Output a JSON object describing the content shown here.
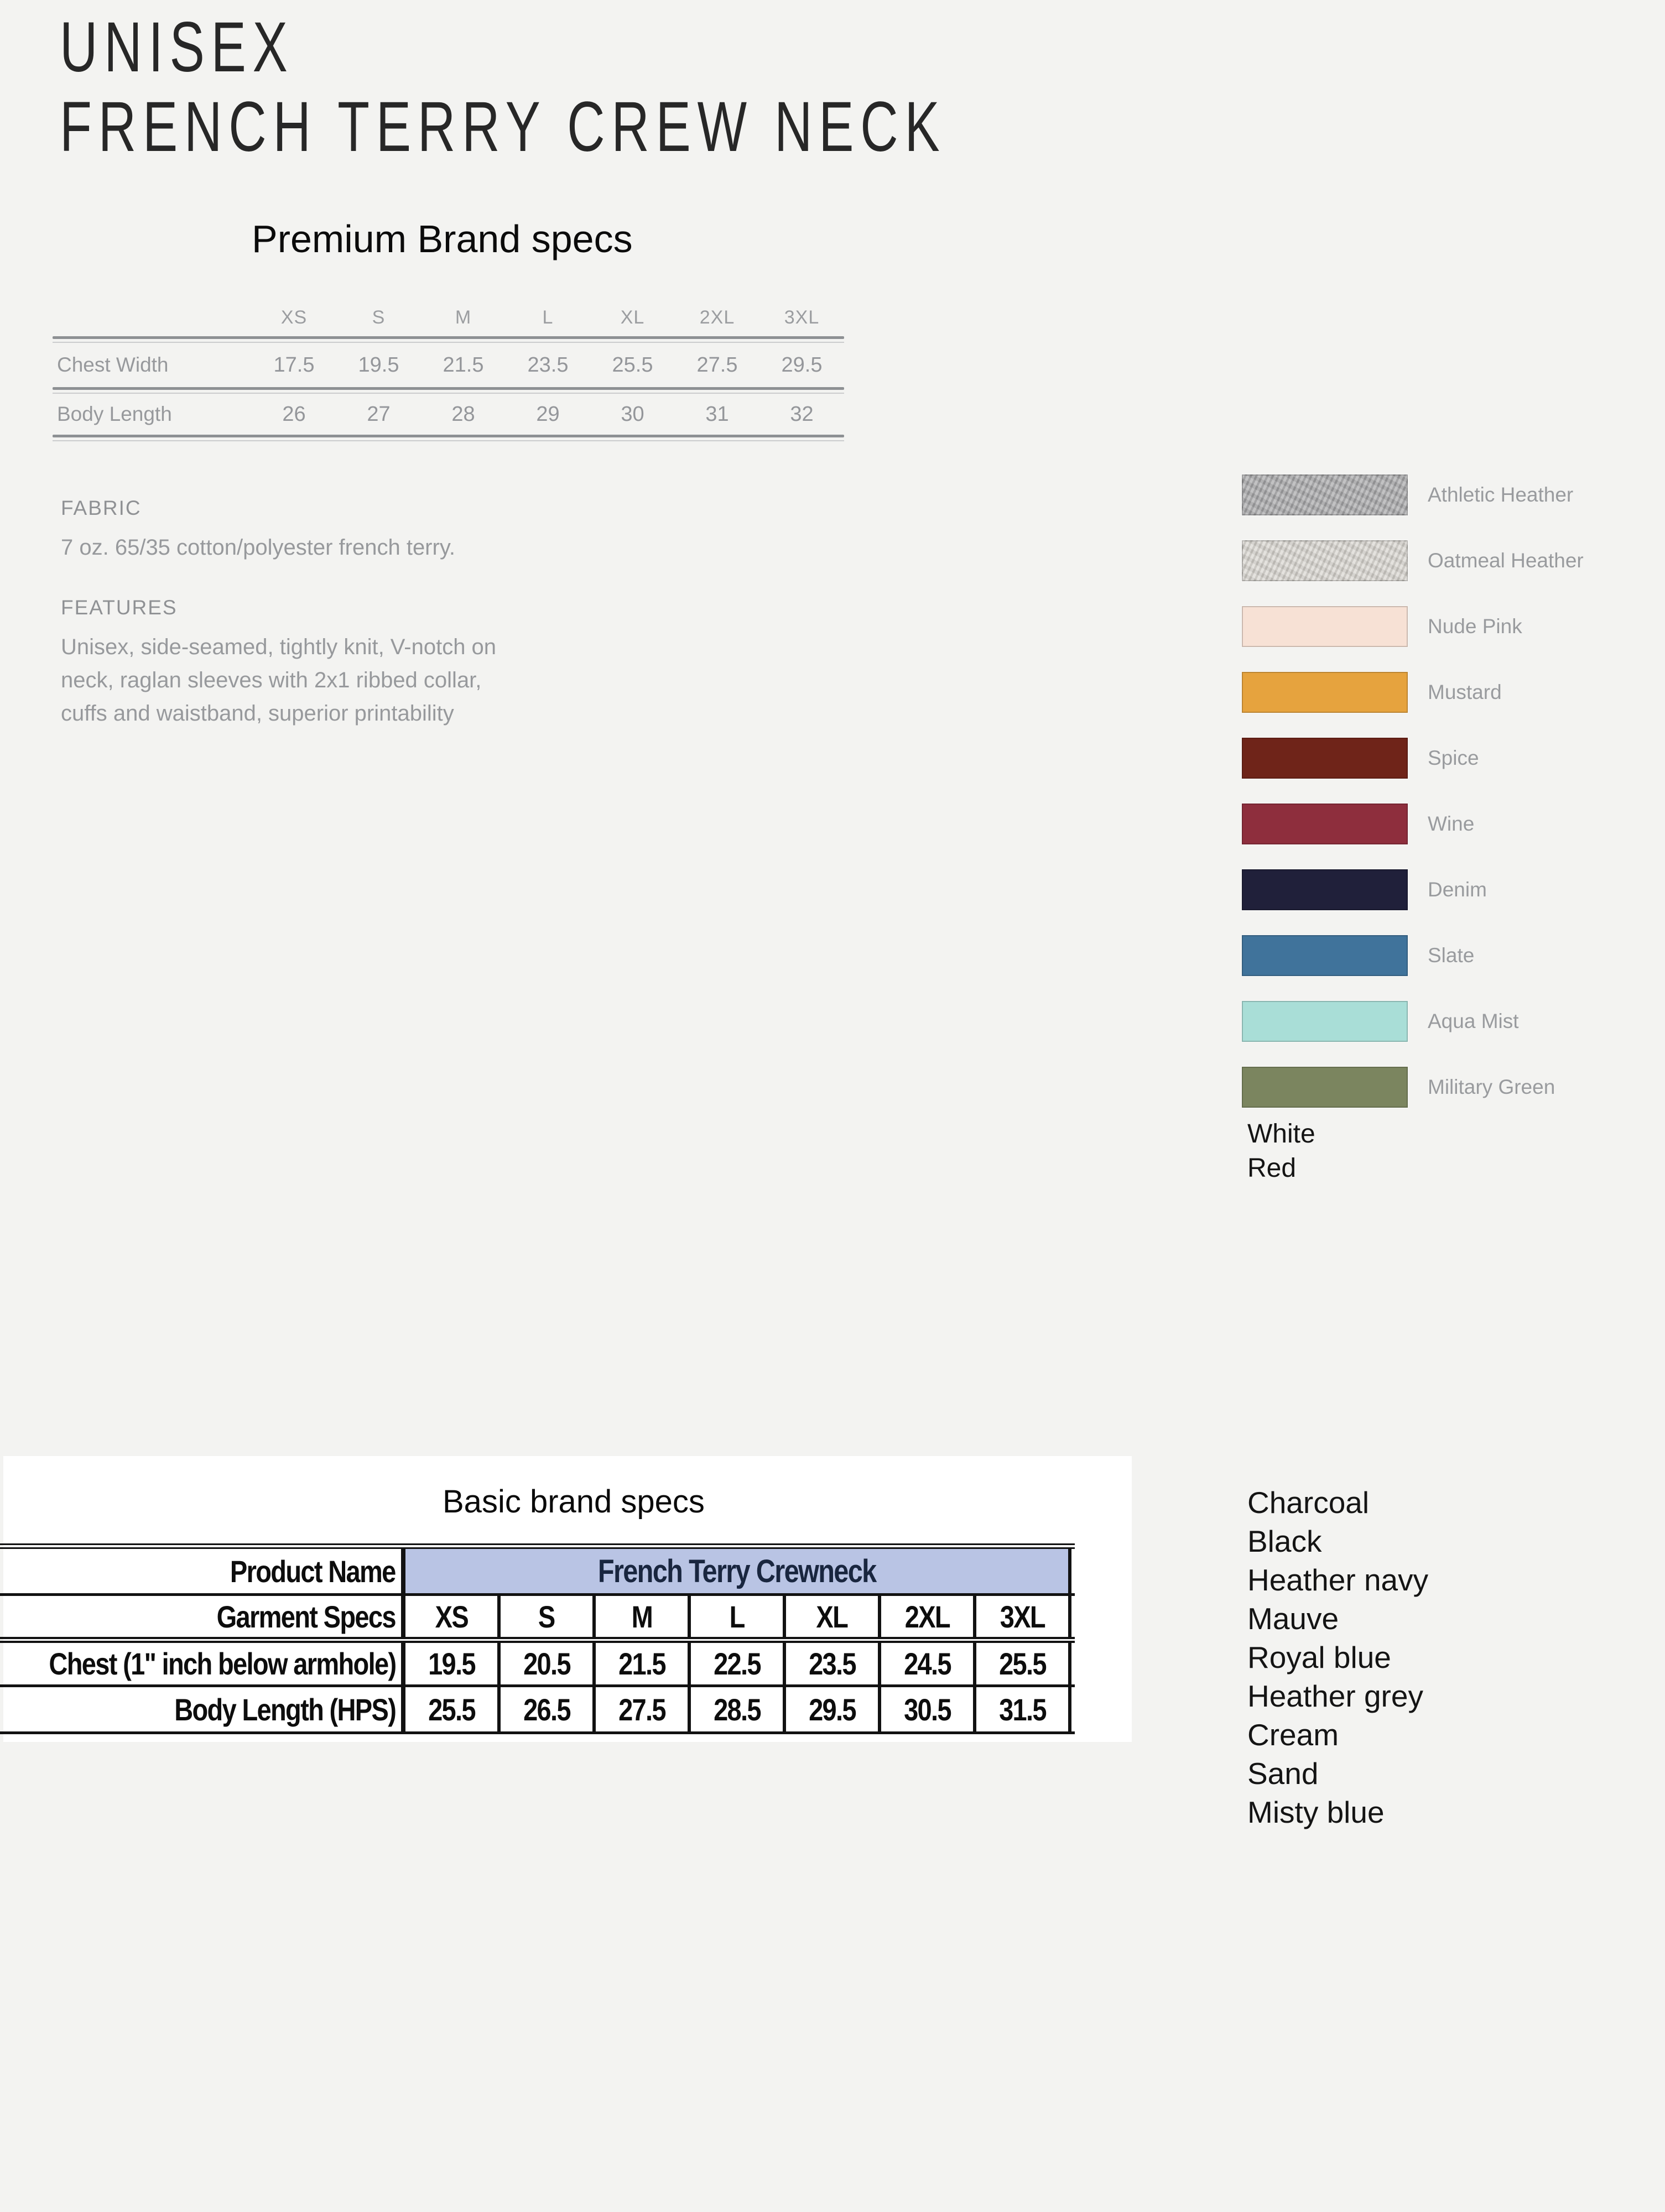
{
  "header": {
    "title_line1": "UNISEX",
    "title_line2": "FRENCH TERRY CREW NECK"
  },
  "premium": {
    "heading": "Premium Brand specs",
    "table": {
      "sizes": [
        "XS",
        "S",
        "M",
        "L",
        "XL",
        "2XL",
        "3XL"
      ],
      "rows": [
        {
          "label": "Chest Width",
          "values": [
            "17.5",
            "19.5",
            "21.5",
            "23.5",
            "25.5",
            "27.5",
            "29.5"
          ]
        },
        {
          "label": "Body Length",
          "values": [
            "26",
            "27",
            "28",
            "29",
            "30",
            "31",
            "32"
          ]
        }
      ]
    },
    "fabric": {
      "heading": "FABRIC",
      "text": "7 oz. 65/35 cotton/polyester french terry."
    },
    "features": {
      "heading": "FEATURES",
      "lines": [
        "Unisex, side-seamed, tightly knit, V-notch on",
        "neck, raglan sleeves with 2x1 ribbed collar,",
        "cuffs and waistband, superior printability"
      ]
    }
  },
  "swatches": [
    {
      "name": "Athletic Heather",
      "color": "#a6a6a8"
    },
    {
      "name": "Oatmeal Heather",
      "color": "#d8d5cf"
    },
    {
      "name": "Nude Pink",
      "color": "#f7e1d5"
    },
    {
      "name": "Mustard",
      "color": "#e6a33e"
    },
    {
      "name": "Spice",
      "color": "#6f2419"
    },
    {
      "name": "Wine",
      "color": "#8e2e3d"
    },
    {
      "name": "Denim",
      "color": "#20203a"
    },
    {
      "name": "Slate",
      "color": "#40739b"
    },
    {
      "name": "Aqua Mist",
      "color": "#a9ded7"
    },
    {
      "name": "Military Green",
      "color": "#7b855f"
    }
  ],
  "extra_colors_top": [
    "White",
    "Red"
  ],
  "extra_colors_bottom": [
    "Charcoal",
    "Black",
    "Heather navy",
    "Mauve",
    "Royal blue",
    "Heather grey",
    "Cream",
    "Sand",
    "Misty blue"
  ],
  "basic": {
    "heading": "Basic brand specs",
    "table": {
      "product_name_label": "Product Name",
      "product_name_value": "French Terry Crewneck",
      "garment_specs_label": "Garment Specs",
      "sizes": [
        "XS",
        "S",
        "M",
        "L",
        "XL",
        "2XL",
        "3XL"
      ],
      "rows": [
        {
          "label": "Chest (1\" inch below armhole)",
          "values": [
            "19.5",
            "20.5",
            "21.5",
            "22.5",
            "23.5",
            "24.5",
            "25.5"
          ]
        },
        {
          "label": "Body Length (HPS)",
          "values": [
            "25.5",
            "26.5",
            "27.5",
            "28.5",
            "29.5",
            "30.5",
            "31.5"
          ]
        }
      ],
      "header_bg": "#b9c4e4"
    }
  }
}
